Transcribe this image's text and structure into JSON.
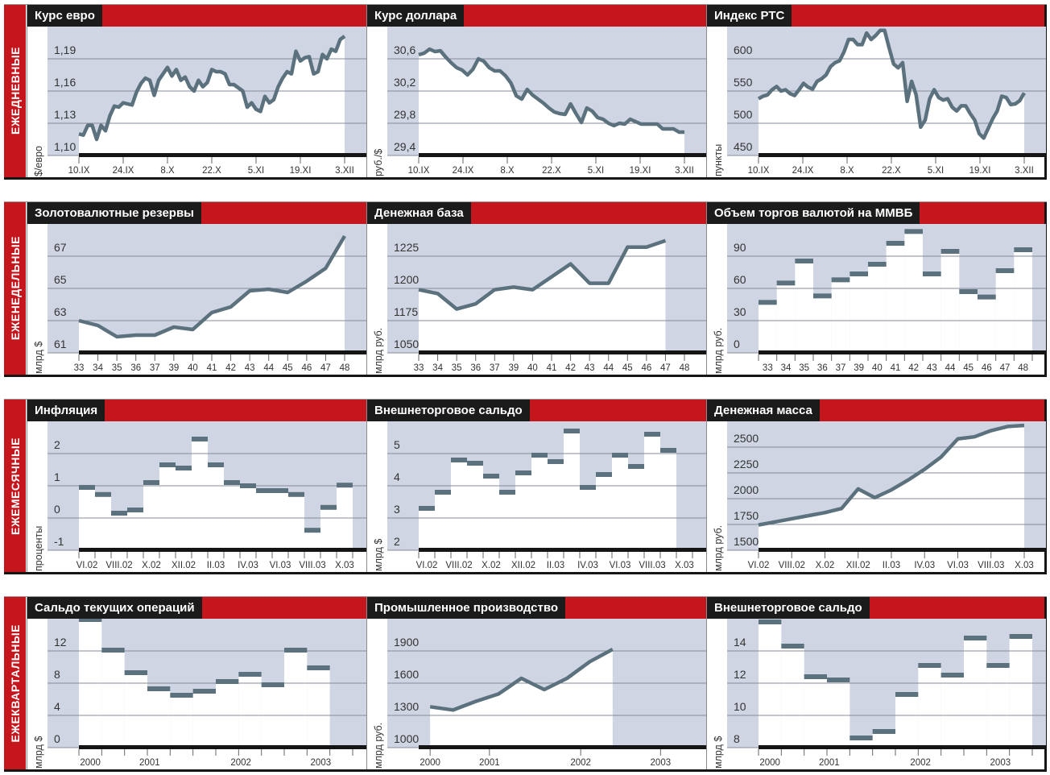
{
  "rows": [
    {
      "label": "ЕЖЕДНЕВНЫЕ"
    },
    {
      "label": "ЕЖЕНЕДЕЛЬНЫЕ"
    },
    {
      "label": "ЕЖЕМЕСЯЧНЫЕ"
    },
    {
      "label": "ЕЖЕКВАРТАЛЬНЫЕ"
    }
  ],
  "colors": {
    "accent": "#c4161c",
    "title_bg": "#1b1b1b",
    "plot_bg": "#cfd5e3",
    "series": "#5b717d"
  },
  "chart_data": [
    {
      "type": "line",
      "mode": "edge",
      "title": "Курс евро",
      "ylabel": "$/евро",
      "yticks": [
        "1,10",
        "1,13",
        "1,16",
        "1,19"
      ],
      "ytick_values": [
        1.1,
        1.13,
        1.16,
        1.19
      ],
      "xdomain": [
        0,
        60
      ],
      "xticks": [
        {
          "label": "10.IX",
          "at": 0
        },
        {
          "label": "24.IX",
          "at": 10
        },
        {
          "label": "8.X",
          "at": 20
        },
        {
          "label": "22.X",
          "at": 30
        },
        {
          "label": "5.XI",
          "at": 40
        },
        {
          "label": "19.XI",
          "at": 50
        },
        {
          "label": "3.XII",
          "at": 60
        }
      ],
      "values": [
        1.12,
        1.119,
        1.128,
        1.128,
        1.115,
        1.128,
        1.123,
        1.137,
        1.146,
        1.145,
        1.149,
        1.148,
        1.147,
        1.159,
        1.167,
        1.172,
        1.17,
        1.156,
        1.17,
        1.176,
        1.182,
        1.174,
        1.18,
        1.17,
        1.173,
        1.164,
        1.16,
        1.17,
        1.164,
        1.168,
        1.18,
        1.178,
        1.178,
        1.176,
        1.166,
        1.166,
        1.163,
        1.16,
        1.145,
        1.149,
        1.143,
        1.141,
        1.155,
        1.149,
        1.152,
        1.164,
        1.172,
        1.178,
        1.176,
        1.197,
        1.188,
        1.191,
        1.192,
        1.176,
        1.178,
        1.194,
        1.19,
        1.199,
        1.197,
        1.208,
        1.211
      ]
    },
    {
      "type": "line",
      "mode": "edge",
      "title": "Курс доллара",
      "ylabel": "руб./$",
      "yticks": [
        "29,4",
        "29,8",
        "30,2",
        "30,6"
      ],
      "ytick_values": [
        29.4,
        29.8,
        30.2,
        30.6
      ],
      "xdomain": [
        0,
        60
      ],
      "xticks": [
        {
          "label": "10.IX",
          "at": 0
        },
        {
          "label": "24.IX",
          "at": 10
        },
        {
          "label": "8.X",
          "at": 20
        },
        {
          "label": "22.X",
          "at": 30
        },
        {
          "label": "5.XI",
          "at": 40
        },
        {
          "label": "19.XI",
          "at": 50
        },
        {
          "label": "3.XII",
          "at": 60
        }
      ],
      "values": [
        30.65,
        30.67,
        30.72,
        30.69,
        30.7,
        30.62,
        30.55,
        30.49,
        30.46,
        30.4,
        30.47,
        30.6,
        30.57,
        30.49,
        30.45,
        30.45,
        30.39,
        30.3,
        30.14,
        30.1,
        30.22,
        30.15,
        30.1,
        30.05,
        29.99,
        29.94,
        29.92,
        29.91,
        30.04,
        29.92,
        29.81,
        29.99,
        29.95,
        29.87,
        29.85,
        29.8,
        29.77,
        29.8,
        29.79,
        29.85,
        29.82,
        29.79,
        29.79,
        29.79,
        29.79,
        29.73,
        29.73,
        29.73,
        29.69,
        29.69
      ]
    },
    {
      "type": "line",
      "mode": "edge",
      "title": "Индекс РТС",
      "ylabel": "пункты",
      "yticks": [
        "450",
        "500",
        "550",
        "600"
      ],
      "ytick_values": [
        450,
        500,
        550,
        600
      ],
      "xdomain": [
        0,
        60
      ],
      "xticks": [
        {
          "label": "10.IX",
          "at": 0
        },
        {
          "label": "24.IX",
          "at": 10
        },
        {
          "label": "8.X",
          "at": 20
        },
        {
          "label": "22.X",
          "at": 30
        },
        {
          "label": "5.XI",
          "at": 40
        },
        {
          "label": "19.XI",
          "at": 50
        },
        {
          "label": "3.XII",
          "at": 60
        }
      ],
      "values": [
        538,
        542,
        544,
        552,
        557,
        550,
        552,
        546,
        543,
        552,
        562,
        556,
        553,
        565,
        569,
        575,
        588,
        594,
        597,
        611,
        630,
        630,
        622,
        622,
        640,
        630,
        636,
        644,
        644,
        617,
        592,
        586,
        594,
        534,
        565,
        544,
        494,
        505,
        538,
        552,
        540,
        536,
        538,
        525,
        519,
        527,
        527,
        515,
        505,
        484,
        477,
        492,
        507,
        519,
        542,
        540,
        529,
        530,
        535,
        547
      ]
    },
    {
      "type": "line",
      "mode": "edge",
      "title": "Золотовалютные резервы",
      "ylabel": "млрд $",
      "yticks": [
        "61",
        "63",
        "65",
        "67"
      ],
      "ytick_values": [
        61,
        63,
        65,
        67
      ],
      "xdomain": [
        0,
        14
      ],
      "xticks": [
        {
          "label": "33",
          "at": 0
        },
        {
          "label": "34",
          "at": 1
        },
        {
          "label": "35",
          "at": 2
        },
        {
          "label": "36",
          "at": 3
        },
        {
          "label": "37",
          "at": 4
        },
        {
          "label": "39",
          "at": 5
        },
        {
          "label": "40",
          "at": 6
        },
        {
          "label": "41",
          "at": 7
        },
        {
          "label": "42",
          "at": 8
        },
        {
          "label": "43",
          "at": 9
        },
        {
          "label": "44",
          "at": 10
        },
        {
          "label": "45",
          "at": 11
        },
        {
          "label": "46",
          "at": 12
        },
        {
          "label": "47",
          "at": 13
        },
        {
          "label": "48",
          "at": 14
        }
      ],
      "values": [
        63.0,
        62.7,
        62.0,
        62.1,
        62.1,
        62.6,
        62.45,
        63.5,
        63.85,
        64.85,
        64.95,
        64.75,
        65.45,
        66.25,
        68.25
      ]
    },
    {
      "type": "line",
      "mode": "edge",
      "title": "Денежная база",
      "ylabel": "млрд руб.",
      "yticks": [
        "1050",
        "1175",
        "1200",
        "1225"
      ],
      "ytick_values": [
        1050,
        1175,
        1200,
        1225
      ],
      "xdomain": [
        0,
        14
      ],
      "xticks": [
        {
          "label": "33",
          "at": 0
        },
        {
          "label": "34",
          "at": 1
        },
        {
          "label": "35",
          "at": 2
        },
        {
          "label": "36",
          "at": 3
        },
        {
          "label": "37",
          "at": 4
        },
        {
          "label": "39",
          "at": 5
        },
        {
          "label": "40",
          "at": 6
        },
        {
          "label": "41",
          "at": 7
        },
        {
          "label": "42",
          "at": 8
        },
        {
          "label": "43",
          "at": 9
        },
        {
          "label": "44",
          "at": 10
        },
        {
          "label": "45",
          "at": 11
        },
        {
          "label": "46",
          "at": 12
        },
        {
          "label": "47",
          "at": 13
        },
        {
          "label": "48",
          "at": 14
        }
      ],
      "values": [
        1199,
        1196,
        1184,
        1188,
        1199,
        1201,
        1199,
        1209,
        1219,
        1204,
        1204,
        1232,
        1232,
        1237
      ],
      "x": [
        0,
        1,
        2,
        3,
        4,
        5,
        6,
        7,
        8,
        9,
        10,
        11,
        12,
        13
      ]
    },
    {
      "type": "step",
      "title": "Объем торгов валютой на ММВБ",
      "ylabel": "млрд руб.",
      "yticks": [
        "0",
        "30",
        "60",
        "90"
      ],
      "ytick_values": [
        0,
        30,
        60,
        90
      ],
      "slots": 15,
      "xticks": [
        {
          "label": "33",
          "at": 0.5
        },
        {
          "label": "34",
          "at": 1.5
        },
        {
          "label": "35",
          "at": 2.5
        },
        {
          "label": "36",
          "at": 3.5
        },
        {
          "label": "37",
          "at": 4.5
        },
        {
          "label": "39",
          "at": 5.5
        },
        {
          "label": "40",
          "at": 6.5
        },
        {
          "label": "41",
          "at": 7.5
        },
        {
          "label": "42",
          "at": 8.5
        },
        {
          "label": "43",
          "at": 9.5
        },
        {
          "label": "44",
          "at": 10.5
        },
        {
          "label": "45",
          "at": 11.5
        },
        {
          "label": "46",
          "at": 12.5
        },
        {
          "label": "47",
          "at": 13.5
        },
        {
          "label": "48",
          "at": 14.5
        }
      ],
      "values": [
        47,
        65,
        85.5,
        53,
        68,
        73.5,
        82.5,
        102,
        113,
        73.5,
        94.5,
        57,
        52,
        76.5,
        96
      ]
    },
    {
      "type": "step",
      "title": "Инфляция",
      "ylabel": "проценты",
      "yticks": [
        "-1",
        "0",
        "1",
        "2"
      ],
      "ytick_values": [
        -1,
        0,
        1,
        2
      ],
      "slots": 17,
      "xticks": [
        {
          "label": "VI.02",
          "at": 0.5
        },
        {
          "label": "VIII.02",
          "at": 2.5
        },
        {
          "label": "X.02",
          "at": 4.5
        },
        {
          "label": "XII.02",
          "at": 6.5
        },
        {
          "label": "II.03",
          "at": 8.5
        },
        {
          "label": "IV.03",
          "at": 10.5
        },
        {
          "label": "VI.03",
          "at": 12.5
        },
        {
          "label": "VIII.03",
          "at": 14.5
        },
        {
          "label": "X.03",
          "at": 16.5
        }
      ],
      "values": [
        0.95,
        0.73,
        0.15,
        0.25,
        1.1,
        1.65,
        1.55,
        2.45,
        1.65,
        1.1,
        1.0,
        0.85,
        0.85,
        0.73,
        -0.38,
        0.33,
        1.02
      ]
    },
    {
      "type": "step",
      "title": "Внешнеторговое сальдо",
      "ylabel": "млрд $",
      "yticks": [
        "2",
        "3",
        "4",
        "5"
      ],
      "ytick_values": [
        2,
        3,
        4,
        5
      ],
      "slots": 17,
      "xticks": [
        {
          "label": "VI.02",
          "at": 0.5
        },
        {
          "label": "VIII.02",
          "at": 2.5
        },
        {
          "label": "X.02",
          "at": 4.5
        },
        {
          "label": "XII.02",
          "at": 6.5
        },
        {
          "label": "II.03",
          "at": 8.5
        },
        {
          "label": "IV.03",
          "at": 10.5
        },
        {
          "label": "VI.03",
          "at": 12.5
        },
        {
          "label": "VIII.03",
          "at": 14.5
        },
        {
          "label": "X.03",
          "at": 16.5
        }
      ],
      "values": [
        3.3,
        3.8,
        4.8,
        4.7,
        4.3,
        3.8,
        4.4,
        4.95,
        4.75,
        5.7,
        3.95,
        4.35,
        4.95,
        4.6,
        5.6,
        5.1
      ]
    },
    {
      "type": "line",
      "mode": "edge",
      "title": "Денежная масса",
      "ylabel": "млрд руб.",
      "yticks": [
        "1500",
        "1750",
        "2000",
        "2250",
        "2500"
      ],
      "ytick_values": [
        1500,
        1750,
        2000,
        2250,
        2500
      ],
      "xdomain": [
        0,
        16
      ],
      "xticks": [
        {
          "label": "VI.02",
          "at": 0
        },
        {
          "label": "VIII.02",
          "at": 2
        },
        {
          "label": "X.02",
          "at": 4
        },
        {
          "label": "XII.02",
          "at": 6
        },
        {
          "label": "II.03",
          "at": 8
        },
        {
          "label": "IV.03",
          "at": 10
        },
        {
          "label": "VI.03",
          "at": 12
        },
        {
          "label": "VIII.03",
          "at": 14
        },
        {
          "label": "X.03",
          "at": 16
        }
      ],
      "values": [
        1745,
        1775,
        1805,
        1835,
        1865,
        1905,
        2095,
        2010,
        2085,
        2180,
        2285,
        2405,
        2580,
        2600,
        2660,
        2700,
        2710
      ]
    },
    {
      "type": "step",
      "title": "Сальдо текущих операций",
      "ylabel": "млрд $",
      "yticks": [
        "0",
        "4",
        "8",
        "12"
      ],
      "ytick_values": [
        0,
        4,
        8,
        12
      ],
      "slots": 12,
      "xticks": [
        {
          "label": "2000",
          "at": 0.5
        },
        {
          "label": "2001",
          "at": 3.1
        },
        {
          "label": "2002",
          "at": 7.1
        },
        {
          "label": "2003",
          "at": 10.6
        }
      ],
      "values": [
        15.9,
        12.1,
        9.3,
        7.3,
        6.5,
        7.0,
        8.2,
        9.1,
        7.8,
        12.1,
        9.9
      ]
    },
    {
      "type": "line",
      "mode": "slot",
      "title": "Промышленное производство",
      "ylabel": "млрд руб.",
      "yticks": [
        "1000",
        "1300",
        "1600",
        "1900"
      ],
      "ytick_values": [
        1000,
        1300,
        1600,
        1900
      ],
      "slots": 12,
      "xticks": [
        {
          "label": "2000",
          "at": 0.5
        },
        {
          "label": "2001",
          "at": 3.1
        },
        {
          "label": "2002",
          "at": 7.1
        },
        {
          "label": "2003",
          "at": 10.6
        }
      ],
      "values": [
        1380,
        1350,
        1430,
        1500,
        1645,
        1540,
        1645,
        1800,
        1915
      ]
    },
    {
      "type": "step",
      "title": "Внешнеторговое сальдо",
      "ylabel": "млрд $",
      "yticks": [
        "8",
        "10",
        "12",
        "14"
      ],
      "ytick_values": [
        8,
        10,
        12,
        14
      ],
      "slots": 12,
      "xticks": [
        {
          "label": "2000",
          "at": 0.5
        },
        {
          "label": "2001",
          "at": 3.1
        },
        {
          "label": "2002",
          "at": 7.1
        },
        {
          "label": "2003",
          "at": 10.6
        }
      ],
      "values": [
        15.8,
        14.3,
        12.4,
        12.2,
        8.6,
        9.0,
        11.3,
        13.1,
        12.5,
        14.8,
        13.1,
        14.9
      ]
    }
  ]
}
